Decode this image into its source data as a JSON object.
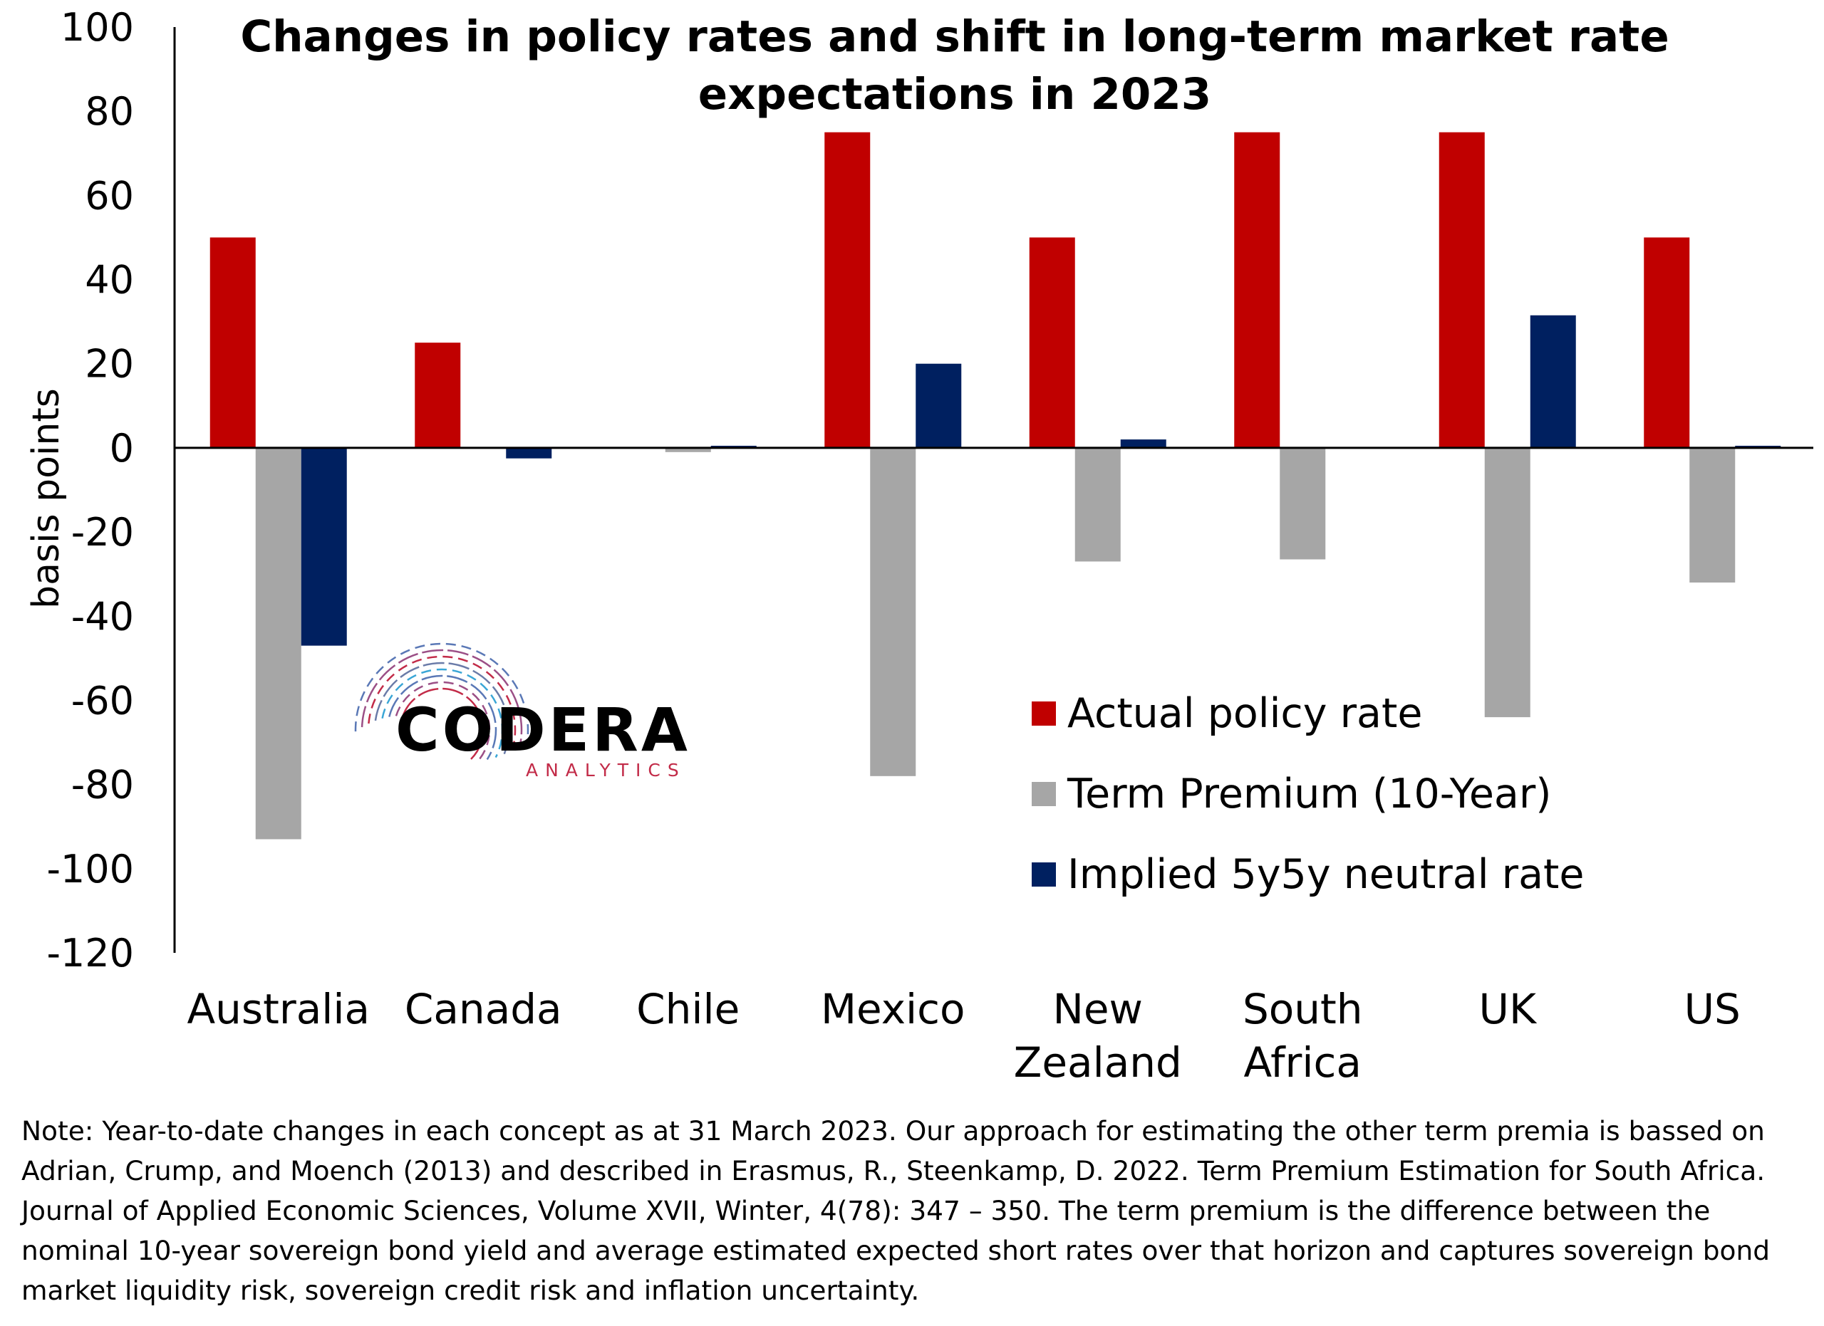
{
  "chart_data": {
    "type": "bar",
    "title_line1": "Changes in policy rates and shift in long-term market rate",
    "title_line2": "expectations in 2023",
    "ylabel": "basis points",
    "ylim": [
      -120,
      100
    ],
    "yticks": [
      100,
      80,
      60,
      40,
      20,
      0,
      -20,
      -40,
      -60,
      -80,
      -100,
      -120
    ],
    "categories": [
      [
        "Australia"
      ],
      [
        "Canada"
      ],
      [
        "Chile"
      ],
      [
        "Mexico"
      ],
      [
        "New",
        "Zealand"
      ],
      [
        "South",
        "Africa"
      ],
      [
        "UK"
      ],
      [
        "US"
      ]
    ],
    "series": [
      {
        "name": "Actual policy rate",
        "color": "#c00000",
        "values": [
          50,
          25,
          0,
          75,
          50,
          75,
          75,
          50
        ]
      },
      {
        "name": "Term Premium (10-Year)",
        "color": "#a6a6a6",
        "values": [
          -93,
          0,
          -1,
          -78,
          -27,
          -26.5,
          -64,
          -32
        ]
      },
      {
        "name": "Implied 5y5y neutral rate",
        "color": "#002060",
        "values": [
          -47,
          -2.5,
          0.5,
          20,
          2,
          0,
          31.5,
          0.5
        ]
      }
    ],
    "legend_position": "bottom-right",
    "grid": false
  },
  "logo": {
    "name": "CODERA",
    "sub": "ANALYTICS"
  },
  "note": "Note: Year-to-date changes in each concept as at 31 March 2023. Our approach for estimating the other term premia is bassed on Adrian, Crump, and Moench (2013) and described in Erasmus, R., Steenkamp, D. 2022. Term Premium Estimation for South Africa. Journal of Applied Economic Sciences, Volume XVII, Winter, 4(78): 347 – 350. The term premium is the difference between the nominal 10-year sovereign bond yield and average estimated expected short rates over that horizon and captures sovereign bond market liquidity risk, sovereign credit risk and inflation uncertainty."
}
